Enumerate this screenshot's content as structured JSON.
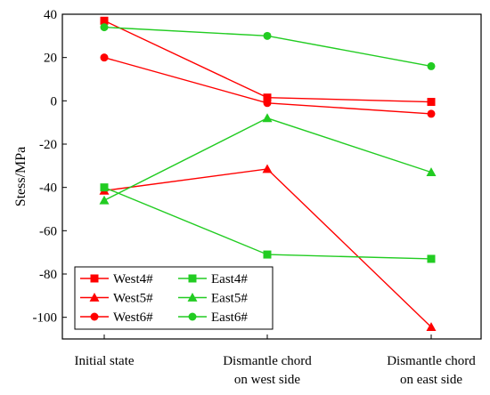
{
  "chart_data": {
    "type": "line",
    "title": "",
    "xlabel": "",
    "ylabel": "Stess/MPa",
    "categories": [
      [
        "Initial state"
      ],
      [
        "Dismantle chord",
        "on west side"
      ],
      [
        "Dismantle chord",
        "on east side"
      ]
    ],
    "ylim": [
      -110,
      40
    ],
    "yticks": [
      40,
      20,
      0,
      -20,
      -40,
      -60,
      -80,
      -100
    ],
    "grid": false,
    "legend_position": "bottom-left",
    "legend_columns": 2,
    "series": [
      {
        "name": "West4#",
        "marker": "square",
        "color": "#ff0000",
        "values": [
          37,
          1.5,
          -0.5
        ]
      },
      {
        "name": "West5#",
        "marker": "triangle",
        "color": "#ff0000",
        "values": [
          -41.5,
          -31.5,
          -104.5
        ]
      },
      {
        "name": "West6#",
        "marker": "circle",
        "color": "#ff0000",
        "values": [
          20,
          -1,
          -6
        ]
      },
      {
        "name": "East4#",
        "marker": "square",
        "color": "#22cc22",
        "values": [
          -40,
          -71,
          -73
        ]
      },
      {
        "name": "East5#",
        "marker": "triangle",
        "color": "#22cc22",
        "values": [
          -46,
          -8,
          -33
        ]
      },
      {
        "name": "East6#",
        "marker": "circle",
        "color": "#22cc22",
        "values": [
          34,
          30,
          16
        ]
      }
    ]
  }
}
